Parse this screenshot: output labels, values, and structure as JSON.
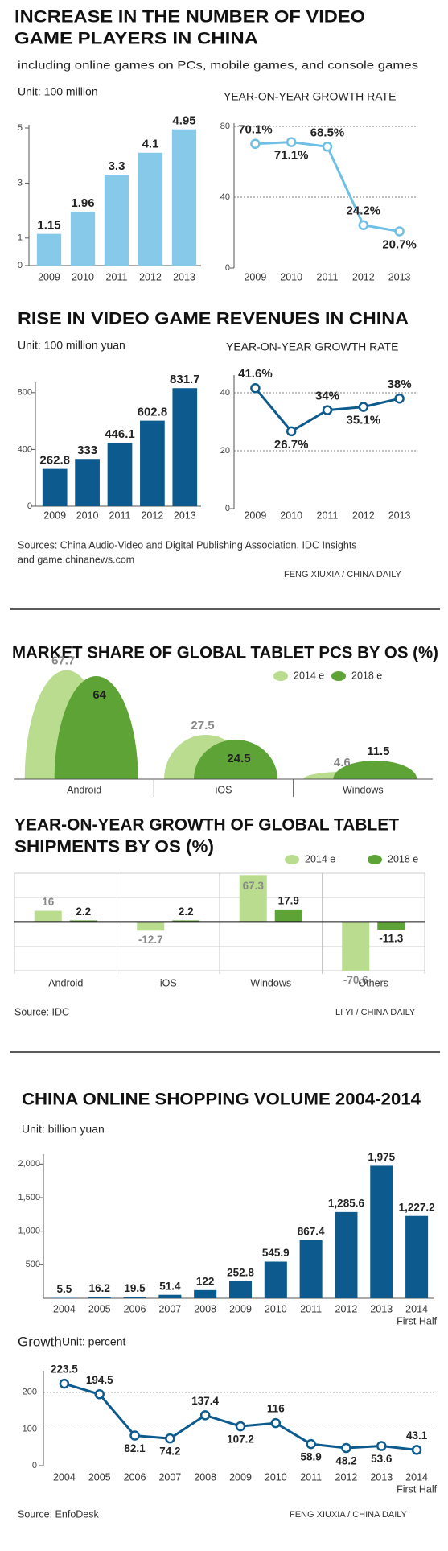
{
  "headers": [
    {
      "title": [
        "INCREASE IN THE NUMBER OF VIDEO",
        "GAME PLAYERS IN CHINA"
      ],
      "subtitle": "including online games on PCs, mobile games, and console games"
    },
    {
      "title": [
        "RISE IN VIDEO GAME REVENUES IN CHINA"
      ]
    },
    {
      "title": [
        "CHINA ONLINE SHOPPING VOLUME 2004-2014"
      ]
    }
  ],
  "footers": [
    {
      "source": [
        "Sources: China Audio-Video and Digital Publishing Association, IDC Insights",
        "and game.chinanews.com"
      ],
      "credit": "FENG XIUXIA / CHINA DAILY"
    },
    {
      "source": [
        "Source: IDC"
      ],
      "credit": "LI YI / CHINA DAILY"
    },
    {
      "source": [
        "Source: EnfoDesk"
      ],
      "credit": "FENG XIUXIA / CHINA DAILY"
    }
  ],
  "chart_data": [
    {
      "type": "bar",
      "unit": "Unit: 100 million",
      "categories": [
        "2009",
        "2010",
        "2011",
        "2012",
        "2013"
      ],
      "values": [
        1.15,
        1.96,
        3.3,
        4.1,
        4.95
      ],
      "color": "#86c9e8",
      "ylim": [
        0,
        5
      ],
      "yticks": [
        0,
        1,
        3,
        5
      ]
    },
    {
      "type": "line",
      "title": "YEAR-ON-YEAR GROWTH RATE",
      "categories": [
        "2009",
        "2010",
        "2011",
        "2012",
        "2013"
      ],
      "values": [
        70.1,
        71.1,
        68.5,
        24.2,
        20.7
      ],
      "value_labels": [
        "70.1%",
        "71.1%",
        "68.5%",
        "24.2%",
        "20.7%"
      ],
      "color": "#6fc0e6",
      "ylim": [
        0,
        80
      ],
      "yticks": [
        0,
        40,
        80
      ],
      "grid": true
    },
    {
      "type": "bar",
      "unit": "Unit: 100 million yuan",
      "categories": [
        "2009",
        "2010",
        "2011",
        "2012",
        "2013"
      ],
      "values": [
        262.8,
        333,
        446.1,
        602.8,
        831.7
      ],
      "color": "#0d5b8e",
      "ylim": [
        0,
        850
      ],
      "yticks": [
        0,
        400,
        800
      ]
    },
    {
      "type": "line",
      "title": "YEAR-ON-YEAR GROWTH RATE",
      "categories": [
        "2009",
        "2010",
        "2011",
        "2012",
        "2013"
      ],
      "values": [
        41.6,
        26.7,
        34,
        35.1,
        38
      ],
      "value_labels": [
        "41.6%",
        "26.7%",
        "34%",
        "35.1%",
        "38%"
      ],
      "color": "#0d5b8e",
      "ylim": [
        0,
        45
      ],
      "yticks": [
        0,
        20,
        40
      ],
      "grid": true
    },
    {
      "type": "semicircle",
      "title": [
        "MARKET SHARE OF GLOBAL TABLET PCS BY OS (%)"
      ],
      "categories": [
        "Android",
        "iOS",
        "Windows"
      ],
      "series": [
        {
          "name": "2014 e",
          "color": "#b9dc8f",
          "values": [
            67.7,
            27.5,
            4.6
          ]
        },
        {
          "name": "2018 e",
          "color": "#5da336",
          "values": [
            64,
            24.5,
            11.5
          ]
        }
      ]
    },
    {
      "type": "grouped_bar",
      "title": [
        "YEAR-ON-YEAR GROWTH OF GLOBAL TABLET",
        "SHIPMENTS BY OS (%)"
      ],
      "categories": [
        "Android",
        "iOS",
        "Windows",
        "Others"
      ],
      "series": [
        {
          "name": "2014 e",
          "color": "#b9dc8f",
          "values": [
            16,
            -12.7,
            67.3,
            -70.6
          ]
        },
        {
          "name": "2018 e",
          "color": "#5da336",
          "values": [
            2.2,
            2.2,
            17.9,
            -11.3
          ]
        }
      ],
      "ylim": [
        -75,
        70
      ]
    },
    {
      "type": "bar",
      "unit": "Unit: billion yuan",
      "categories": [
        "2004",
        "2005",
        "2006",
        "2007",
        "2008",
        "2009",
        "2010",
        "2011",
        "2012",
        "2013",
        "2014"
      ],
      "category_note": "First Half",
      "values": [
        5.5,
        16.2,
        19.5,
        51.4,
        122,
        252.8,
        545.9,
        867.4,
        1285.6,
        1975,
        1227.2
      ],
      "value_labels": [
        "5.5",
        "16.2",
        "19.5",
        "51.4",
        "122",
        "252.8",
        "545.9",
        "867.4",
        "1,285.6",
        "1,975",
        "1,227.2"
      ],
      "color": "#0d5b8e",
      "ylim": [
        0,
        2100
      ],
      "yticks": [
        500,
        {
          "value": 1000,
          "label": "1,000"
        },
        {
          "value": 1500,
          "label": "1,500"
        },
        {
          "value": 2000,
          "label": "2,000"
        }
      ]
    },
    {
      "type": "line",
      "title": "Growth",
      "unit": "Unit: percent",
      "categories": [
        "2004",
        "2005",
        "2006",
        "2007",
        "2008",
        "2009",
        "2010",
        "2011",
        "2012",
        "2013",
        "2014"
      ],
      "category_note": "First Half",
      "values": [
        223.5,
        194.5,
        82.1,
        74.2,
        137.4,
        107.2,
        116,
        58.9,
        48.2,
        53.6,
        43.1
      ],
      "color": "#0d5b8e",
      "ylim": [
        0,
        250
      ],
      "yticks": [
        0,
        100,
        200
      ],
      "grid": true
    }
  ]
}
